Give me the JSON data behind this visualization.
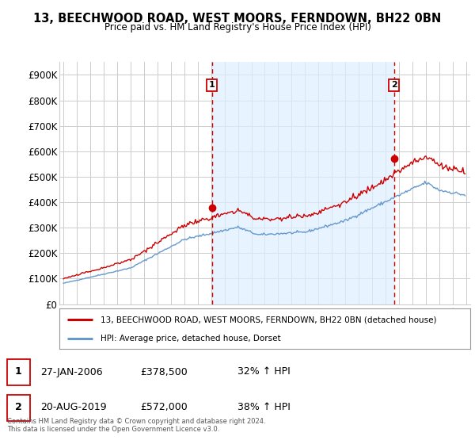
{
  "title": "13, BEECHWOOD ROAD, WEST MOORS, FERNDOWN, BH22 0BN",
  "subtitle": "Price paid vs. HM Land Registry's House Price Index (HPI)",
  "background_color": "#ffffff",
  "grid_color": "#cccccc",
  "red_line_color": "#cc0000",
  "blue_line_color": "#6699cc",
  "shade_color": "#ddeeff",
  "ylim": [
    0,
    950000
  ],
  "yticks": [
    0,
    100000,
    200000,
    300000,
    400000,
    500000,
    600000,
    700000,
    800000,
    900000
  ],
  "ytick_labels": [
    "£0",
    "£100K",
    "£200K",
    "£300K",
    "£400K",
    "£500K",
    "£600K",
    "£700K",
    "£800K",
    "£900K"
  ],
  "marker1_x_year": 2006.07,
  "marker1_y": 378500,
  "marker1_label": "1",
  "marker2_x_year": 2019.63,
  "marker2_y": 572000,
  "marker2_label": "2",
  "legend_line1": "13, BEECHWOOD ROAD, WEST MOORS, FERNDOWN, BH22 0BN (detached house)",
  "legend_line2": "HPI: Average price, detached house, Dorset",
  "note1_date": "27-JAN-2006",
  "note1_price": "£378,500",
  "note1_hpi": "32% ↑ HPI",
  "note2_date": "20-AUG-2019",
  "note2_price": "£572,000",
  "note2_hpi": "38% ↑ HPI",
  "footer": "Contains HM Land Registry data © Crown copyright and database right 2024.\nThis data is licensed under the Open Government Licence v3.0.",
  "xlim_left": 1994.7,
  "xlim_right": 2025.3
}
